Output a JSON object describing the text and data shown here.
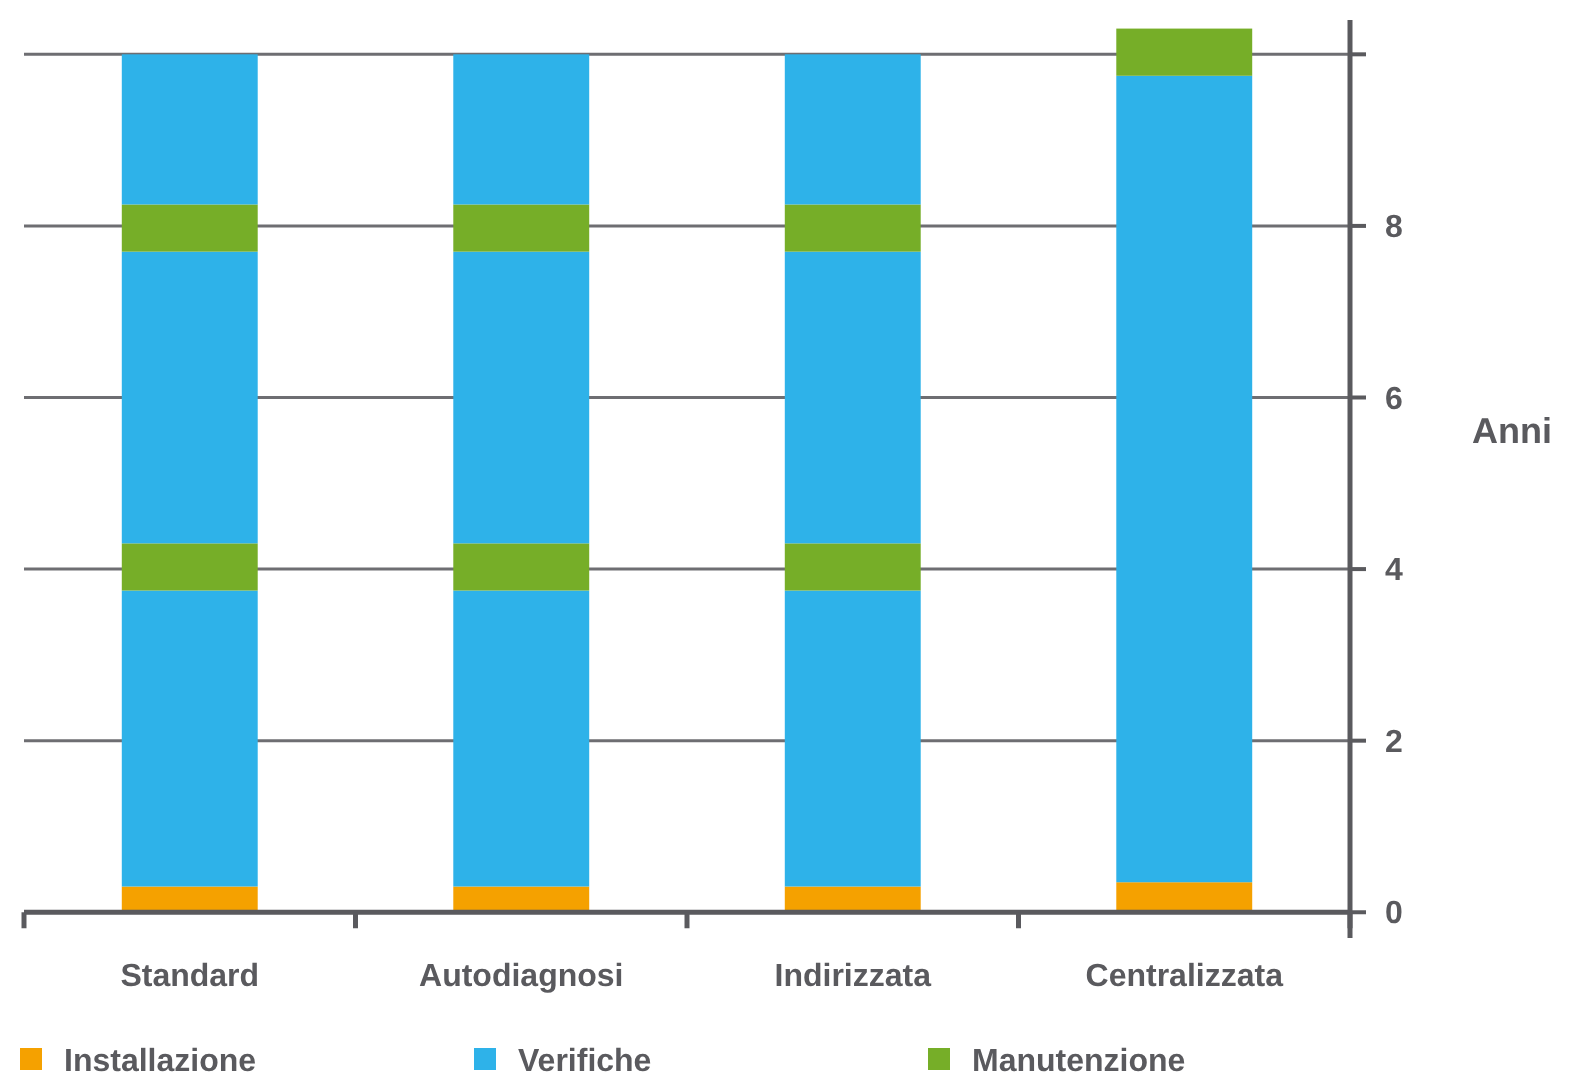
{
  "chart_data": {
    "type": "bar",
    "stacked": true,
    "ylabel": "Anni",
    "categories": [
      "Standard",
      "Autodiagnosi",
      "Indirizzata",
      "Centralizzata"
    ],
    "series": [
      {
        "name": "Installazione",
        "color": "#f5a100",
        "values": [
          0.3,
          0.3,
          0.3,
          0.35
        ]
      },
      {
        "name": "Verifiche",
        "color": "#2eb2e9",
        "values": [
          3.45,
          3.45,
          3.45,
          9.4
        ]
      },
      {
        "name": "Manutenzione",
        "color": "#76ae28",
        "values": [
          0.55,
          0.55,
          0.55,
          0.55
        ]
      },
      {
        "color": "#2eb2e9",
        "values": [
          3.4,
          3.4,
          3.4,
          null
        ]
      },
      {
        "color": "#76ae28",
        "values": [
          0.55,
          0.55,
          0.55,
          null
        ]
      },
      {
        "color": "#2eb2e9",
        "values": [
          1.75,
          1.75,
          1.75,
          null
        ]
      }
    ],
    "ylim": [
      -0.3,
      10.4
    ],
    "yticks": [
      0,
      2,
      4,
      6,
      8,
      {
        "value": 10,
        "label": null
      }
    ],
    "grid": "y",
    "legend": "bottom"
  }
}
